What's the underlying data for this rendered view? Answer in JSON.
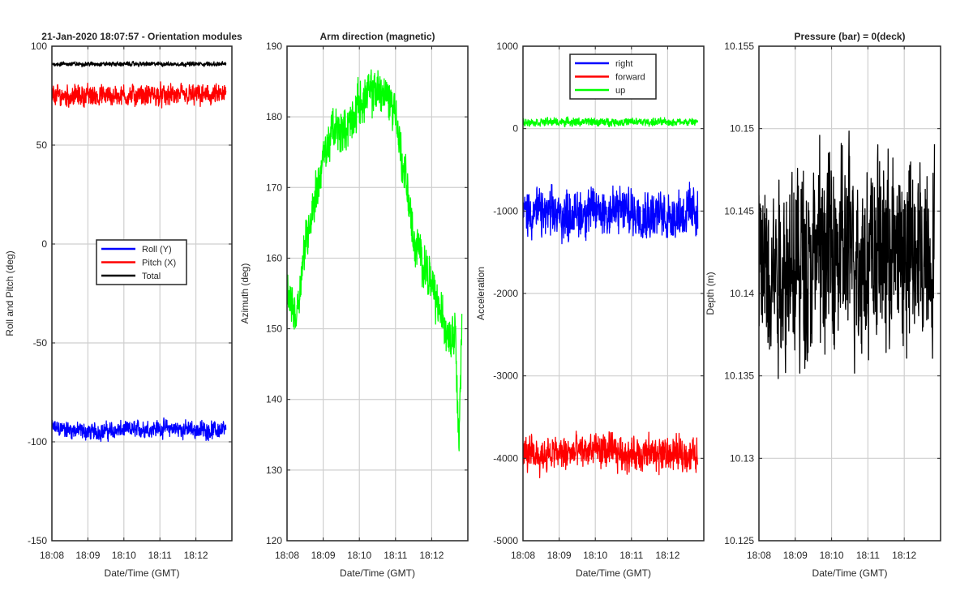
{
  "figure": {
    "background": "#ffffff",
    "axis_color": "#262626",
    "grid_color": "#cfcfcf"
  },
  "chart_data": [
    {
      "type": "line",
      "title": "21-Jan-2020 18:07:57 - Orientation modules",
      "xlabel": "Date/Time (GMT)",
      "ylabel": "Roll and Pitch (deg)",
      "xlim": [
        "18:08",
        "18:13"
      ],
      "ylim": [
        -150,
        100
      ],
      "xticks": [
        "18:08",
        "18:09",
        "18:10",
        "18:11",
        "18:12"
      ],
      "yticks": [
        100,
        50,
        0,
        -50,
        -100,
        -150
      ],
      "grid": true,
      "legend": {
        "placement": "center",
        "entries": [
          "Roll (Y)",
          "Pitch (X)",
          "Total"
        ]
      },
      "series": [
        {
          "name": "Roll (Y)",
          "color": "#0000ff",
          "points": [
            [
              "18:08:00",
              -93
            ],
            [
              "18:09:00",
              -95
            ],
            [
              "18:10:00",
              -94
            ],
            [
              "18:11:00",
              -93
            ],
            [
              "18:12:00",
              -94
            ],
            [
              "18:12:50",
              -94
            ]
          ],
          "noise": 4
        },
        {
          "name": "Pitch (X)",
          "color": "#ff0000",
          "points": [
            [
              "18:08:00",
              75
            ],
            [
              "18:09:00",
              75
            ],
            [
              "18:10:00",
              75
            ],
            [
              "18:11:00",
              75
            ],
            [
              "18:12:00",
              75
            ],
            [
              "18:12:50",
              75
            ]
          ],
          "noise": 5
        },
        {
          "name": "Total",
          "color": "#000000",
          "points": [
            [
              "18:08:00",
              91
            ],
            [
              "18:10:00",
              91
            ],
            [
              "18:12:50",
              91
            ]
          ],
          "noise": 1
        }
      ]
    },
    {
      "type": "line",
      "title": "Arm direction (magnetic)",
      "xlabel": "Date/Time (GMT)",
      "ylabel": "Azimuth (deg)",
      "xlim": [
        "18:08",
        "18:13"
      ],
      "ylim": [
        120,
        190
      ],
      "xticks": [
        "18:08",
        "18:09",
        "18:10",
        "18:11",
        "18:12"
      ],
      "yticks": [
        190,
        180,
        170,
        160,
        150,
        140,
        130,
        120
      ],
      "grid": true,
      "series": [
        {
          "name": "",
          "color": "#00ff00",
          "points": [
            [
              "18:08:00",
              155
            ],
            [
              "18:08:15",
              152
            ],
            [
              "18:08:30",
              162
            ],
            [
              "18:08:45",
              168
            ],
            [
              "18:09:00",
              174
            ],
            [
              "18:09:15",
              178
            ],
            [
              "18:09:30",
              178
            ],
            [
              "18:09:45",
              179
            ],
            [
              "18:10:00",
              182
            ],
            [
              "18:10:15",
              183
            ],
            [
              "18:10:30",
              184
            ],
            [
              "18:10:45",
              183
            ],
            [
              "18:11:00",
              181
            ],
            [
              "18:11:10",
              174
            ],
            [
              "18:11:20",
              170
            ],
            [
              "18:11:30",
              162
            ],
            [
              "18:11:45",
              160
            ],
            [
              "18:12:00",
              156
            ],
            [
              "18:12:15",
              152
            ],
            [
              "18:12:30",
              149
            ],
            [
              "18:12:40",
              150
            ],
            [
              "18:12:45",
              133
            ],
            [
              "18:12:50",
              150
            ]
          ],
          "noise": 3
        }
      ]
    },
    {
      "type": "line",
      "title": "",
      "xlabel": "Date/Time (GMT)",
      "ylabel": "Acceleration",
      "xlim": [
        "18:08",
        "18:13"
      ],
      "ylim": [
        -5000,
        1000
      ],
      "xticks": [
        "18:08",
        "18:09",
        "18:10",
        "18:11",
        "18:12"
      ],
      "yticks": [
        1000,
        0,
        -1000,
        -2000,
        -3000,
        -4000,
        -5000
      ],
      "grid": true,
      "legend": {
        "placement": "top-center",
        "entries": [
          "right",
          "forward",
          "up"
        ]
      },
      "series": [
        {
          "name": "right",
          "color": "#0000ff",
          "points": [
            [
              "18:08:00",
              -1000
            ],
            [
              "18:09:00",
              -1050
            ],
            [
              "18:10:00",
              -1000
            ],
            [
              "18:11:00",
              -1000
            ],
            [
              "18:12:00",
              -1050
            ],
            [
              "18:12:50",
              -1000
            ]
          ],
          "noise": 280
        },
        {
          "name": "forward",
          "color": "#ff0000",
          "points": [
            [
              "18:08:00",
              -3950
            ],
            [
              "18:09:00",
              -3950
            ],
            [
              "18:10:00",
              -3900
            ],
            [
              "18:11:00",
              -3950
            ],
            [
              "18:12:00",
              -3950
            ],
            [
              "18:12:50",
              -3950
            ]
          ],
          "noise": 200
        },
        {
          "name": "up",
          "color": "#00ff00",
          "points": [
            [
              "18:08:00",
              80
            ],
            [
              "18:10:00",
              80
            ],
            [
              "18:12:50",
              80
            ]
          ],
          "noise": 45
        }
      ]
    },
    {
      "type": "line",
      "title": "Pressure (bar) = 0(deck)",
      "xlabel": "Date/Time (GMT)",
      "ylabel": "Depth (m)",
      "xlim": [
        "18:08",
        "18:13"
      ],
      "ylim": [
        10.125,
        10.155
      ],
      "xticks": [
        "18:08",
        "18:09",
        "18:10",
        "18:11",
        "18:12"
      ],
      "yticks": [
        "10.155",
        "10.15",
        "10.145",
        "10.14",
        "10.135",
        "10.13",
        "10.125"
      ],
      "grid": true,
      "series": [
        {
          "name": "",
          "color": "#000000",
          "points": [
            [
              "18:08:00",
              10.1415
            ],
            [
              "18:10:00",
              10.1425
            ],
            [
              "18:12:50",
              10.1425
            ]
          ],
          "noise": 0.0055
        }
      ]
    }
  ]
}
